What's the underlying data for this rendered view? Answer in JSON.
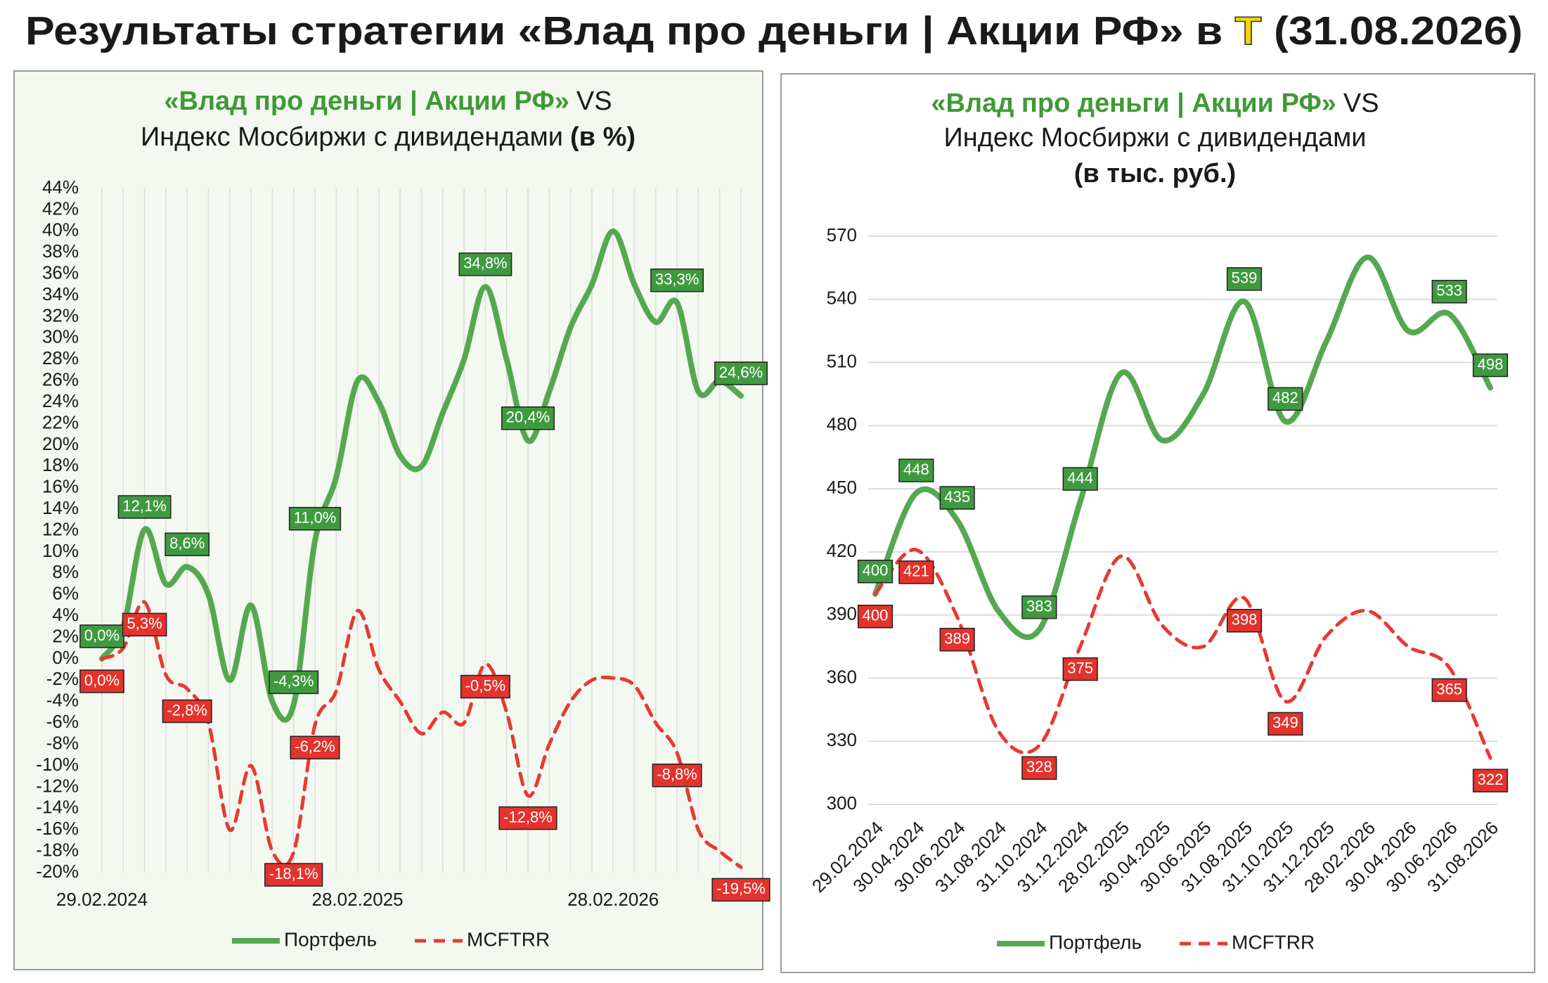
{
  "title": {
    "text": "Результаты стратегии «Влад про деньги | Акции РФ» в",
    "logo": "Т",
    "date": "(31.08.2026)"
  },
  "chart_data": [
    {
      "type": "line",
      "title": {
        "brand": "«Влад про деньги | Акции РФ»",
        "vs": "VS",
        "index": "Индекс Мосбиржи с дивидендами",
        "unit": "(в %)"
      },
      "categories": [
        "29.02.2024",
        null,
        null,
        null,
        null,
        null,
        null,
        null,
        null,
        null,
        null,
        null,
        "28.02.2025",
        null,
        null,
        null,
        null,
        null,
        null,
        null,
        null,
        null,
        null,
        null,
        "28.02.2026",
        null,
        null,
        null,
        null,
        null,
        null
      ],
      "series": [
        {
          "name": "Портфель",
          "color": "#55a84f",
          "dash": false,
          "values": [
            0,
            3,
            12.1,
            7,
            8.6,
            6,
            -2,
            5,
            -4,
            -4.3,
            11.0,
            17,
            26,
            24,
            19,
            18,
            23,
            28,
            34.8,
            28,
            20.4,
            25,
            31,
            35,
            40,
            35,
            31.5,
            33.3,
            25,
            26,
            24.6
          ],
          "value_labels": [
            "0,0%",
            null,
            "12,1%",
            null,
            "8,6%",
            null,
            null,
            null,
            null,
            "-4,3%",
            "11,0%",
            null,
            null,
            null,
            null,
            null,
            null,
            null,
            "34,8%",
            null,
            "20,4%",
            null,
            null,
            null,
            null,
            null,
            null,
            "33,3%",
            null,
            null,
            "24,6%"
          ]
        },
        {
          "name": "MCFTRR",
          "color": "#e53a32",
          "dash": true,
          "values": [
            0,
            1,
            5.3,
            -1.5,
            -2.8,
            -6,
            -16,
            -10,
            -18,
            -18.1,
            -6.2,
            -3,
            4.5,
            -1,
            -4,
            -7,
            -5,
            -6,
            -0.5,
            -5,
            -12.8,
            -8,
            -4,
            -2,
            -1.8,
            -2.5,
            -6,
            -8.8,
            -16,
            -18,
            -19.5
          ],
          "value_labels": [
            "0,0%",
            null,
            "5,3%",
            null,
            "-2,8%",
            null,
            null,
            null,
            null,
            "-18,1%",
            "-6,2%",
            null,
            null,
            null,
            null,
            null,
            null,
            null,
            "-0,5%",
            null,
            "-12,8%",
            null,
            null,
            null,
            null,
            null,
            null,
            "-8,8%",
            null,
            null,
            "-19,5%"
          ]
        }
      ],
      "ylim": [
        -20,
        44
      ],
      "yticks": [
        {
          "value": -20,
          "label": "-20%"
        },
        {
          "value": -18,
          "label": "-18%"
        },
        {
          "value": -16,
          "label": "-16%"
        },
        {
          "value": -14,
          "label": "-14%"
        },
        {
          "value": -12,
          "label": "-12%"
        },
        {
          "value": -10,
          "label": "-10%"
        },
        {
          "value": -8,
          "label": "-8%"
        },
        {
          "value": -6,
          "label": "-6%"
        },
        {
          "value": -4,
          "label": "-4%"
        },
        {
          "value": -2,
          "label": "-2%"
        },
        {
          "value": 0,
          "label": "0%"
        },
        {
          "value": 2,
          "label": "2%"
        },
        {
          "value": 4,
          "label": "4%"
        },
        {
          "value": 6,
          "label": "6%"
        },
        {
          "value": 8,
          "label": "8%"
        },
        {
          "value": 10,
          "label": "10%"
        },
        {
          "value": 12,
          "label": "12%"
        },
        {
          "value": 14,
          "label": "14%"
        },
        {
          "value": 16,
          "label": "16%"
        },
        {
          "value": 18,
          "label": "18%"
        },
        {
          "value": 20,
          "label": "20%"
        },
        {
          "value": 22,
          "label": "22%"
        },
        {
          "value": 24,
          "label": "24%"
        },
        {
          "value": 26,
          "label": "26%"
        },
        {
          "value": 28,
          "label": "28%"
        },
        {
          "value": 30,
          "label": "30%"
        },
        {
          "value": 32,
          "label": "32%"
        },
        {
          "value": 34,
          "label": "34%"
        },
        {
          "value": 36,
          "label": "36%"
        },
        {
          "value": 38,
          "label": "38%"
        },
        {
          "value": 40,
          "label": "40%"
        },
        {
          "value": 42,
          "label": "42%"
        },
        {
          "value": 44,
          "label": "44%"
        }
      ],
      "grid": "x"
    },
    {
      "type": "line",
      "title": {
        "brand": "«Влад про деньги | Акции РФ»",
        "vs": "VS",
        "index": "Индекс Мосбиржи с дивидендами",
        "unit": "(в тыс. руб.)"
      },
      "categories": [
        "29.02.2024",
        "30.04.2024",
        "30.06.2024",
        "31.08.2024",
        "31.10.2024",
        "31.12.2024",
        "28.02.2025",
        "30.04.2025",
        "30.06.2025",
        "31.08.2025",
        "31.10.2025",
        "31.12.2025",
        "28.02.2026",
        "30.04.2026",
        "30.06.2026",
        "31.08.2026"
      ],
      "series": [
        {
          "name": "Портфель",
          "color": "#55a84f",
          "dash": false,
          "values": [
            400,
            448,
            435,
            392,
            383,
            444,
            505,
            473,
            495,
            539,
            482,
            520,
            560,
            525,
            533,
            498
          ],
          "labeled": [
            0,
            1,
            2,
            4,
            5,
            9,
            10,
            14,
            15
          ]
        },
        {
          "name": "MCFTRR",
          "color": "#e53a32",
          "dash": true,
          "values": [
            400,
            421,
            389,
            335,
            328,
            375,
            418,
            385,
            375,
            398,
            349,
            380,
            392,
            375,
            365,
            322
          ],
          "labeled": [
            0,
            1,
            2,
            4,
            5,
            9,
            10,
            14,
            15
          ]
        }
      ],
      "ylim": [
        300,
        570
      ],
      "yticks": [
        300,
        330,
        360,
        390,
        420,
        450,
        480,
        510,
        540,
        570
      ],
      "grid": "y"
    }
  ]
}
